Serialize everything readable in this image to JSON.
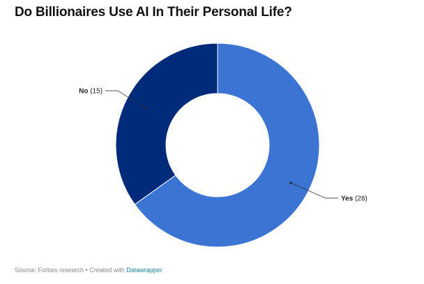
{
  "chart_data": {
    "type": "pie",
    "title": "Do Billionaires Use AI In Their Personal Life?",
    "donut": true,
    "categories": [
      "Yes",
      "No"
    ],
    "values": [
      28,
      15
    ],
    "labels": [
      "(28)",
      "(15)"
    ],
    "colors": [
      "#3b74d3",
      "#002b7a"
    ]
  },
  "footer": {
    "source_text": "Source: Forbes research • Created with ",
    "link_text": "Datawrapper"
  }
}
